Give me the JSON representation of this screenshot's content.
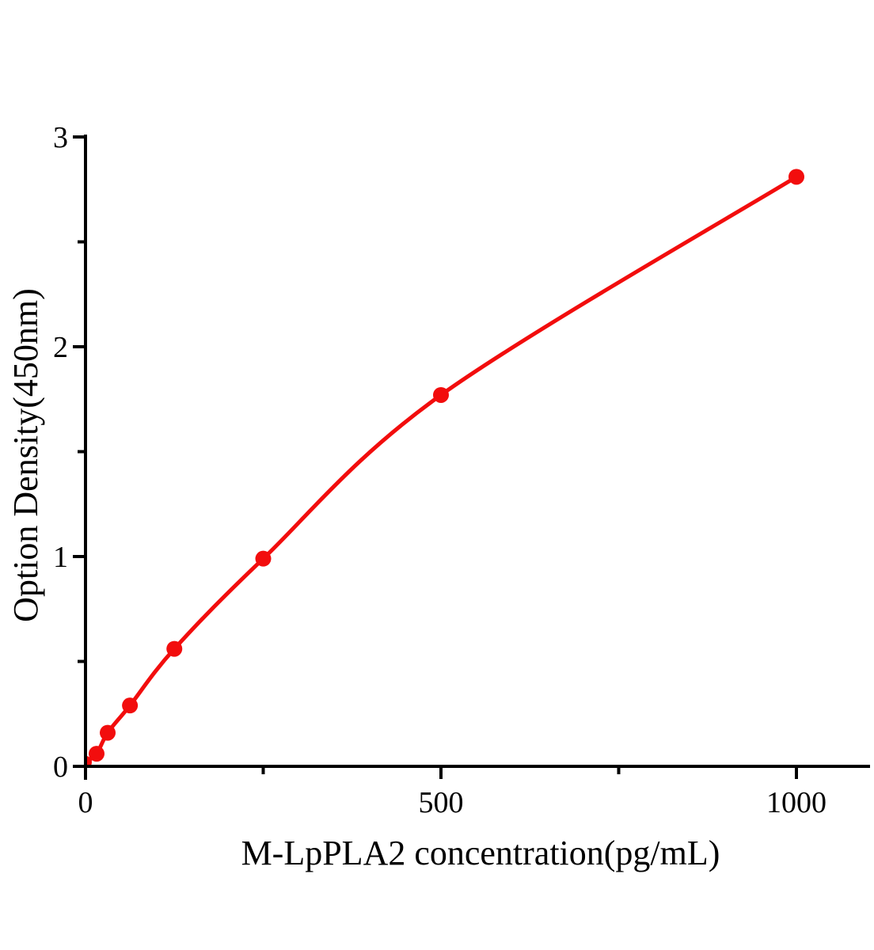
{
  "chart_data": {
    "type": "line",
    "title": "",
    "xlabel": "M-LpPLA2 concentration(pg/mL)",
    "ylabel": "Option Density(450nm)",
    "x": [
      0,
      15.6,
      31.2,
      62.5,
      125,
      250,
      500,
      1000
    ],
    "y": [
      0.02,
      0.06,
      0.16,
      0.29,
      0.56,
      0.99,
      1.77,
      2.81
    ],
    "xlim": [
      0,
      1100
    ],
    "ylim": [
      0,
      3
    ],
    "x_major_ticks": [
      0,
      500,
      1000
    ],
    "x_tick_labels": [
      "0",
      "500",
      "1000"
    ],
    "x_minor_ticks": [
      250,
      750
    ],
    "y_major_ticks": [
      0,
      1,
      2,
      3
    ],
    "y_tick_labels": [
      "0",
      "1",
      "2",
      "3"
    ],
    "y_minor_ticks": [
      0.5,
      1.5,
      2.5
    ],
    "grid": false,
    "legend": "none",
    "marker": "circle",
    "colors": {
      "curve": "#f20d0d",
      "axis": "#000000",
      "background": "#ffffff"
    }
  }
}
